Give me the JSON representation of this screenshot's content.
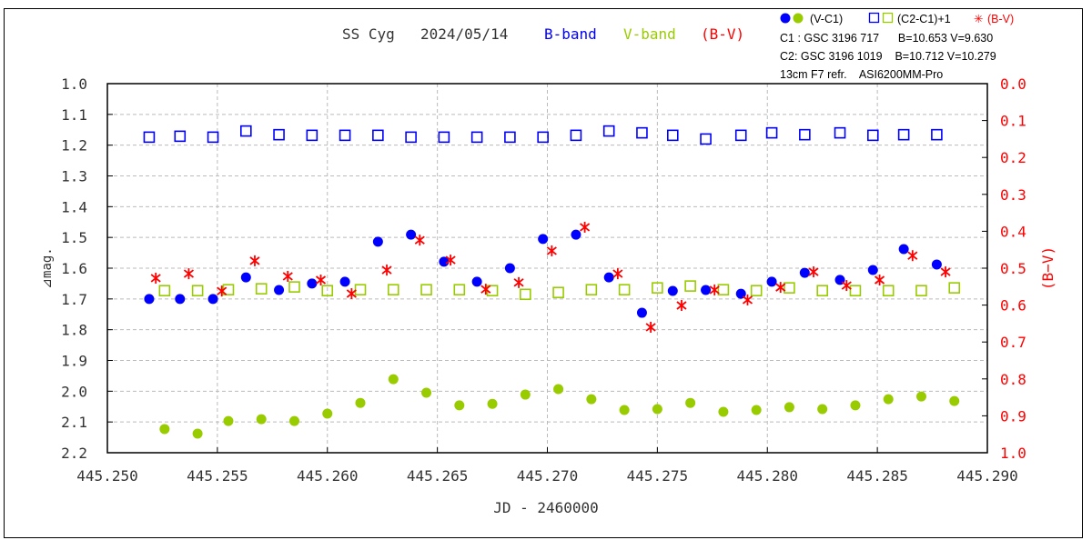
{
  "colors": {
    "blue": "#0000ff",
    "green": "#99cc00",
    "red": "#ff0000",
    "grid": "#bbbbbb"
  },
  "chart_data": {
    "type": "scatter",
    "title": {
      "object": "SS Cyg",
      "date": "2024/05/14",
      "b_band": "B-band",
      "v_band": "V-band",
      "bv": "(B-V)"
    },
    "legend": {
      "vc1": "(V-C1)",
      "c2c1": "(C2-C1)+1",
      "bv": "(B-V)",
      "c1": "C1 : GSC 3196 717      B=10.653 V=9.630",
      "c2": "C2: GSC 3196 1019    B=10.712 V=10.279",
      "instrument": "13cm F7 refr.    ASI6200MM-Pro"
    },
    "xlabel": "JD - 2460000",
    "ylabel": "⊿mag.",
    "y2label": "(B−V)",
    "xlim": [
      445.25,
      445.29
    ],
    "ylim": [
      1.0,
      2.2
    ],
    "y2lim": [
      0.0,
      1.0
    ],
    "xticks": [
      "445.250",
      "445.255",
      "445.260",
      "445.265",
      "445.270",
      "445.275",
      "445.280",
      "445.285",
      "445.290"
    ],
    "yticks": [
      "1.0",
      "1.1",
      "1.2",
      "1.3",
      "1.4",
      "1.5",
      "1.6",
      "1.7",
      "1.8",
      "1.9",
      "2.0",
      "2.1",
      "2.2"
    ],
    "y2ticks": [
      "0.0",
      "0.1",
      "0.2",
      "0.3",
      "0.4",
      "0.5",
      "0.6",
      "0.7",
      "0.8",
      "0.9",
      "1.0"
    ],
    "series": [
      {
        "name": "B (V-C1) blue dots",
        "marker": "dot",
        "color": "blue",
        "axis": "left",
        "x": [
          445.2519,
          445.2533,
          445.2548,
          445.2563,
          445.2578,
          445.2593,
          445.2608,
          445.2623,
          445.2638,
          445.2653,
          445.2668,
          445.2683,
          445.2698,
          445.2713,
          445.2728,
          445.2743,
          445.2757,
          445.2772,
          445.2788,
          445.2802,
          445.2817,
          445.2833,
          445.2848,
          445.2862,
          445.2877
        ],
        "y": [
          1.7,
          1.7,
          1.7,
          1.63,
          1.671,
          1.65,
          1.644,
          1.514,
          1.491,
          1.579,
          1.644,
          1.6,
          1.505,
          1.491,
          1.63,
          1.745,
          1.674,
          1.671,
          1.683,
          1.644,
          1.615,
          1.638,
          1.606,
          1.538,
          1.588
        ]
      },
      {
        "name": "V (V-C1) green dots",
        "marker": "dot",
        "color": "green",
        "axis": "left",
        "x": [
          445.2526,
          445.2541,
          445.2555,
          445.257,
          445.2585,
          445.26,
          445.2615,
          445.263,
          445.2645,
          445.266,
          445.2675,
          445.269,
          445.2705,
          445.272,
          445.2735,
          445.275,
          445.2765,
          445.278,
          445.2795,
          445.281,
          445.2825,
          445.284,
          445.2855,
          445.287,
          445.2885
        ],
        "y": [
          2.123,
          2.138,
          2.097,
          2.091,
          2.097,
          2.073,
          2.038,
          1.961,
          2.005,
          2.046,
          2.041,
          2.011,
          1.993,
          2.026,
          2.061,
          2.058,
          2.038,
          2.067,
          2.061,
          2.052,
          2.058,
          2.046,
          2.026,
          2.017,
          2.032
        ]
      },
      {
        "name": "B (C2-C1)+1 blue squares",
        "marker": "square",
        "color": "blue",
        "axis": "left",
        "x": [
          445.2519,
          445.2533,
          445.2548,
          445.2563,
          445.2578,
          445.2593,
          445.2608,
          445.2623,
          445.2638,
          445.2653,
          445.2668,
          445.2683,
          445.2698,
          445.2713,
          445.2728,
          445.2743,
          445.2757,
          445.2772,
          445.2788,
          445.2802,
          445.2817,
          445.2833,
          445.2848,
          445.2862,
          445.2877
        ],
        "y": [
          1.174,
          1.171,
          1.174,
          1.154,
          1.166,
          1.168,
          1.168,
          1.168,
          1.174,
          1.174,
          1.174,
          1.174,
          1.174,
          1.168,
          1.154,
          1.16,
          1.168,
          1.18,
          1.168,
          1.16,
          1.166,
          1.16,
          1.168,
          1.166,
          1.166
        ]
      },
      {
        "name": "V (C2-C1)+1 green squares",
        "marker": "square",
        "color": "green",
        "axis": "left",
        "x": [
          445.2526,
          445.2541,
          445.2555,
          445.257,
          445.2585,
          445.26,
          445.2615,
          445.263,
          445.2645,
          445.266,
          445.2675,
          445.269,
          445.2705,
          445.272,
          445.2735,
          445.275,
          445.2765,
          445.278,
          445.2795,
          445.281,
          445.2825,
          445.284,
          445.2855,
          445.287,
          445.2885
        ],
        "y": [
          1.673,
          1.673,
          1.67,
          1.667,
          1.661,
          1.673,
          1.67,
          1.67,
          1.67,
          1.67,
          1.673,
          1.685,
          1.679,
          1.67,
          1.67,
          1.664,
          1.658,
          1.67,
          1.673,
          1.664,
          1.673,
          1.673,
          1.673,
          1.673,
          1.664
        ]
      },
      {
        "name": "(B-V) red asterisks",
        "marker": "asterisk",
        "color": "red",
        "axis": "right",
        "x": [
          445.2522,
          445.2537,
          445.2552,
          445.2567,
          445.2582,
          445.2597,
          445.2611,
          445.2627,
          445.2642,
          445.2656,
          445.2672,
          445.2687,
          445.2702,
          445.2717,
          445.2732,
          445.2747,
          445.2761,
          445.2776,
          445.2791,
          445.2806,
          445.2821,
          445.2836,
          445.2851,
          445.2866,
          445.2881
        ],
        "y": [
          0.527,
          0.515,
          0.562,
          0.48,
          0.522,
          0.532,
          0.569,
          0.505,
          0.424,
          0.478,
          0.557,
          0.539,
          0.453,
          0.389,
          0.515,
          0.66,
          0.601,
          0.559,
          0.586,
          0.552,
          0.51,
          0.547,
          0.532,
          0.466,
          0.51
        ]
      }
    ]
  }
}
